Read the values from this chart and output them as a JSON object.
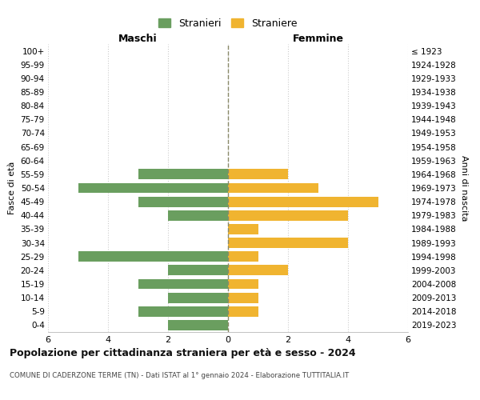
{
  "age_groups": [
    "100+",
    "95-99",
    "90-94",
    "85-89",
    "80-84",
    "75-79",
    "70-74",
    "65-69",
    "60-64",
    "55-59",
    "50-54",
    "45-49",
    "40-44",
    "35-39",
    "30-34",
    "25-29",
    "20-24",
    "15-19",
    "10-14",
    "5-9",
    "0-4"
  ],
  "birth_years": [
    "≤ 1923",
    "1924-1928",
    "1929-1933",
    "1934-1938",
    "1939-1943",
    "1944-1948",
    "1949-1953",
    "1954-1958",
    "1959-1963",
    "1964-1968",
    "1969-1973",
    "1974-1978",
    "1979-1983",
    "1984-1988",
    "1989-1993",
    "1994-1998",
    "1999-2003",
    "2004-2008",
    "2009-2013",
    "2014-2018",
    "2019-2023"
  ],
  "males": [
    0,
    0,
    0,
    0,
    0,
    0,
    0,
    0,
    0,
    3,
    5,
    3,
    2,
    0,
    0,
    5,
    2,
    3,
    2,
    3,
    2
  ],
  "females": [
    0,
    0,
    0,
    0,
    0,
    0,
    0,
    0,
    0,
    2,
    3,
    5,
    4,
    1,
    4,
    1,
    2,
    1,
    1,
    1,
    0
  ],
  "male_color": "#6a9e5f",
  "female_color": "#f0b430",
  "male_label": "Stranieri",
  "female_label": "Straniere",
  "title": "Popolazione per cittadinanza straniera per età e sesso - 2024",
  "subtitle": "COMUNE DI CADERZONE TERME (TN) - Dati ISTAT al 1° gennaio 2024 - Elaborazione TUTTITALIA.IT",
  "xlabel_left": "Maschi",
  "xlabel_right": "Femmine",
  "ylabel_left": "Fasce di età",
  "ylabel_right": "Anni di nascita",
  "xlim": 6,
  "background_color": "#ffffff",
  "grid_color": "#cccccc"
}
